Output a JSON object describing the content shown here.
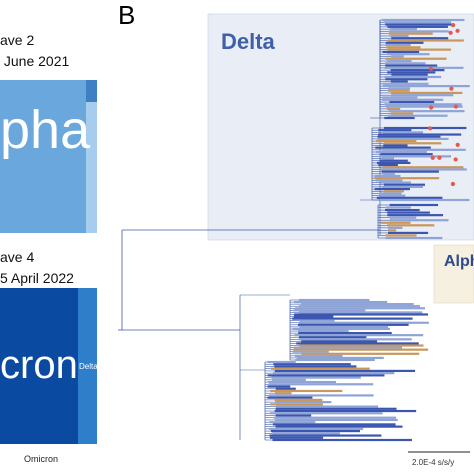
{
  "panel_a": {
    "wave2_title": "ave 2",
    "wave2_date": " June 2021",
    "alpha_word": "pha",
    "wave4_title": "ave 4",
    "wave4_date": "5 April 2022",
    "omicron_word": "cron",
    "delta_inset": "Delta",
    "legend_omicron": "Omicron",
    "colors": {
      "alpha": "#6aa7dc",
      "omicron": "#0a4aa0",
      "delta": "#2f7ec9"
    }
  },
  "panel_b": {
    "letter": "B",
    "delta_clade": "Delta",
    "alpha_clade": "Alph",
    "scale_bar": "2.0E-4 s/s/y",
    "colors": {
      "delta_box": "#e9edf6",
      "alpha_box": "#f6f0e0",
      "branch": "#3f5ba8",
      "tip_marker": "#e8584a"
    }
  }
}
